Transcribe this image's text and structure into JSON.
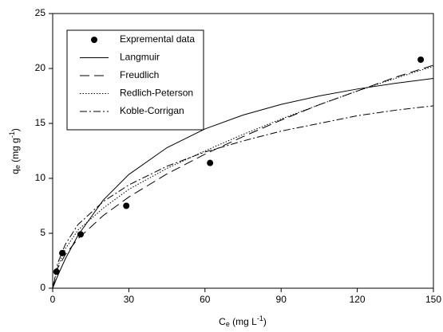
{
  "chart_data": {
    "type": "scatter",
    "x_label": [
      "C",
      "e",
      " (mg L",
      "-1",
      ")"
    ],
    "y_label": [
      "q",
      "e",
      " (mg g",
      "-1",
      ")"
    ],
    "xlim": [
      0,
      150
    ],
    "xticks": [
      0,
      30,
      60,
      90,
      120,
      150
    ],
    "ylim": [
      0,
      25
    ],
    "yticks": [
      0,
      5,
      10,
      15,
      20,
      25
    ],
    "legend": "upper left",
    "series": [
      {
        "name": "Expremental data",
        "type": "scatter",
        "color": "#000000",
        "x": [
          1.5,
          3.8,
          11,
          29,
          62,
          145
        ],
        "values": [
          1.5,
          3.2,
          4.9,
          7.5,
          11.4,
          20.8
        ]
      },
      {
        "name": "Langmuir",
        "type": "line",
        "style": "solid",
        "color": "#000000",
        "x": [
          0,
          2,
          5,
          10,
          20,
          30,
          45,
          60,
          75,
          90,
          105,
          120,
          135,
          150
        ],
        "values": [
          0,
          1.15,
          2.68,
          4.83,
          8.04,
          10.35,
          12.79,
          14.5,
          15.76,
          16.73,
          17.5,
          18.13,
          18.65,
          19.09
        ]
      },
      {
        "name": "Freudlich",
        "type": "line",
        "style": "dashed",
        "color": "#000000",
        "x": [
          0,
          2,
          5,
          10,
          20,
          30,
          45,
          60,
          75,
          90,
          105,
          120,
          135,
          150
        ],
        "values": [
          0,
          1.84,
          3.07,
          4.51,
          6.63,
          8.3,
          10.4,
          12.2,
          13.8,
          15.3,
          16.7,
          17.95,
          19.2,
          20.3
        ]
      },
      {
        "name": "Redlich-Peterson",
        "type": "line",
        "style": "dotted",
        "color": "#000000",
        "x": [
          0,
          2,
          5,
          10,
          20,
          30,
          45,
          60,
          75,
          90,
          105,
          120,
          135,
          150
        ],
        "values": [
          0,
          2.0,
          3.6,
          5.3,
          7.3,
          9.0,
          10.9,
          12.5,
          14.0,
          15.4,
          16.7,
          17.95,
          19.1,
          20.2
        ]
      },
      {
        "name": "Koble-Corrigan",
        "type": "line",
        "style": "dashdot",
        "color": "#000000",
        "x": [
          0,
          2,
          5,
          10,
          20,
          30,
          45,
          60,
          75,
          90,
          105,
          120,
          135,
          150
        ],
        "values": [
          0,
          2.3,
          4.0,
          5.8,
          7.9,
          9.4,
          11.1,
          12.4,
          13.4,
          14.3,
          15.0,
          15.7,
          16.2,
          16.6
        ]
      }
    ]
  }
}
